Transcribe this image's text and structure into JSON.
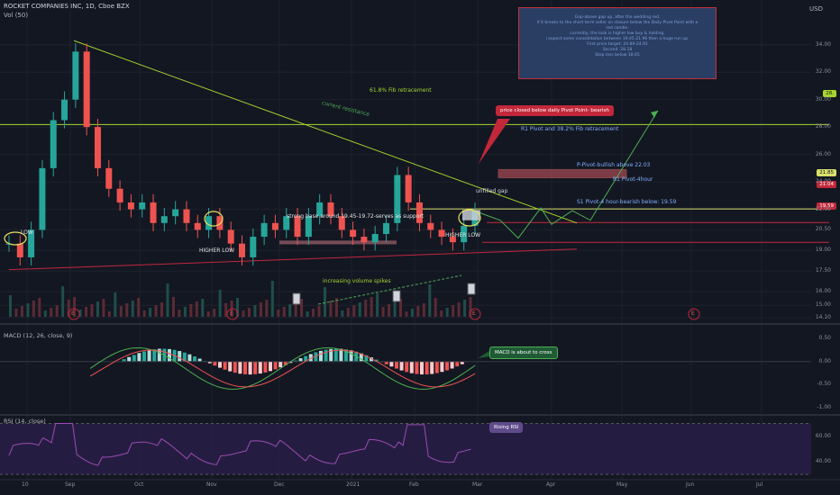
{
  "header": {
    "symbol": "ROCKET COMPANIES INC, 1D, Cboe BZX",
    "volume_label": "Vol (50)",
    "currency": "USD"
  },
  "note_box": [
    "Gap-above gap up, after the wedding red.",
    "if it breaks to the short term seller on closure below the Daily Pivot Point with a",
    "red candle.",
    "currently, the look is higher low buy & holding.",
    "i expect some consolidation between 19.45-21.96 then a huge run up.",
    "First price target: 24.89-24.91",
    "Second: 28.18",
    "Stop loss below 18.65"
  ],
  "annotations": {
    "fib": "61.8% Fib retracement",
    "resistance": "current resistance",
    "price_closed": "price closed below daily Pivot Point- bearish",
    "r1_fib": "R1 Pivot and 38.2% Fib retracement",
    "p_pivot": "P-Pivot-bullish above 22.03",
    "r1_4h": "R1 Pivot-4hour",
    "s1_4h": "S1 Pivot-4 hour-bearish below: 19.59",
    "unfilled": "unfilled gap",
    "strong_base": "strong base around 19.45-19.72-serves as support",
    "low": "LOW",
    "higher_low_1": "HIGHER LOW",
    "higher_low_2": "HIGHER LOW",
    "volume": "increasing volume spikes",
    "macd_note": "MACD is about to cross",
    "rsi_note": "Rising RSI",
    "earnings": "E"
  },
  "tags": {
    "fib_level": "28.",
    "price": "21.85",
    "r1": "21.04",
    "s1": "19.59"
  },
  "macd_label": "MACD (12, 26, close, 9)",
  "rsi_label": "RSI (14, close)",
  "colors": {
    "up": "#26a69a",
    "down": "#ef5350",
    "green_line": "#a5d62d",
    "red_line": "#c2283a",
    "bg": "#131722"
  },
  "chart_data": [
    {
      "type": "candlestick",
      "title": "ROCKET COMPANIES INC, 1D, Cboe BZX",
      "x_ticks": [
        "10",
        "Sep",
        "Oct",
        "Nov",
        "Dec",
        "2021",
        "Feb",
        "Mar",
        "Apr",
        "May",
        "Jun",
        "Jul"
      ],
      "y_ticks": [
        34.0,
        32.0,
        30.0,
        28.0,
        26.0,
        24.0,
        22.0,
        20.5,
        19.0,
        17.5,
        16.0,
        15.0,
        14.1
      ],
      "ylim": [
        13.9,
        37.0
      ],
      "close_approx": [
        19.5,
        18.5,
        20.5,
        25.0,
        28.5,
        30.0,
        33.5,
        28.0,
        25.0,
        23.5,
        22.5,
        22.0,
        22.5,
        21.0,
        21.5,
        22.0,
        21.0,
        20.5,
        21.5,
        20.5,
        19.5,
        18.5,
        20.0,
        21.0,
        20.5,
        21.5,
        20.0,
        21.5,
        22.5,
        21.5,
        20.5,
        20.0,
        19.6,
        20.2,
        21.0,
        24.5,
        22.5,
        21.0,
        20.5,
        20.0,
        19.6,
        20.8,
        21.9
      ],
      "levels": {
        "fib_61_8": 28.18,
        "p_pivot": 22.03,
        "r1_4h": 21.04,
        "s1_4h": 19.59,
        "price": 21.85
      }
    },
    {
      "type": "bar",
      "title": "MACD (12, 26, close, 9)",
      "y_ticks": [
        0.5,
        0.0,
        -0.5,
        -1.0
      ],
      "ylim": [
        -1.1,
        0.7
      ]
    },
    {
      "type": "line",
      "title": "RSI (14, close)",
      "y_ticks": [
        60.0,
        40.0
      ],
      "ylim": [
        28,
        76
      ]
    }
  ]
}
